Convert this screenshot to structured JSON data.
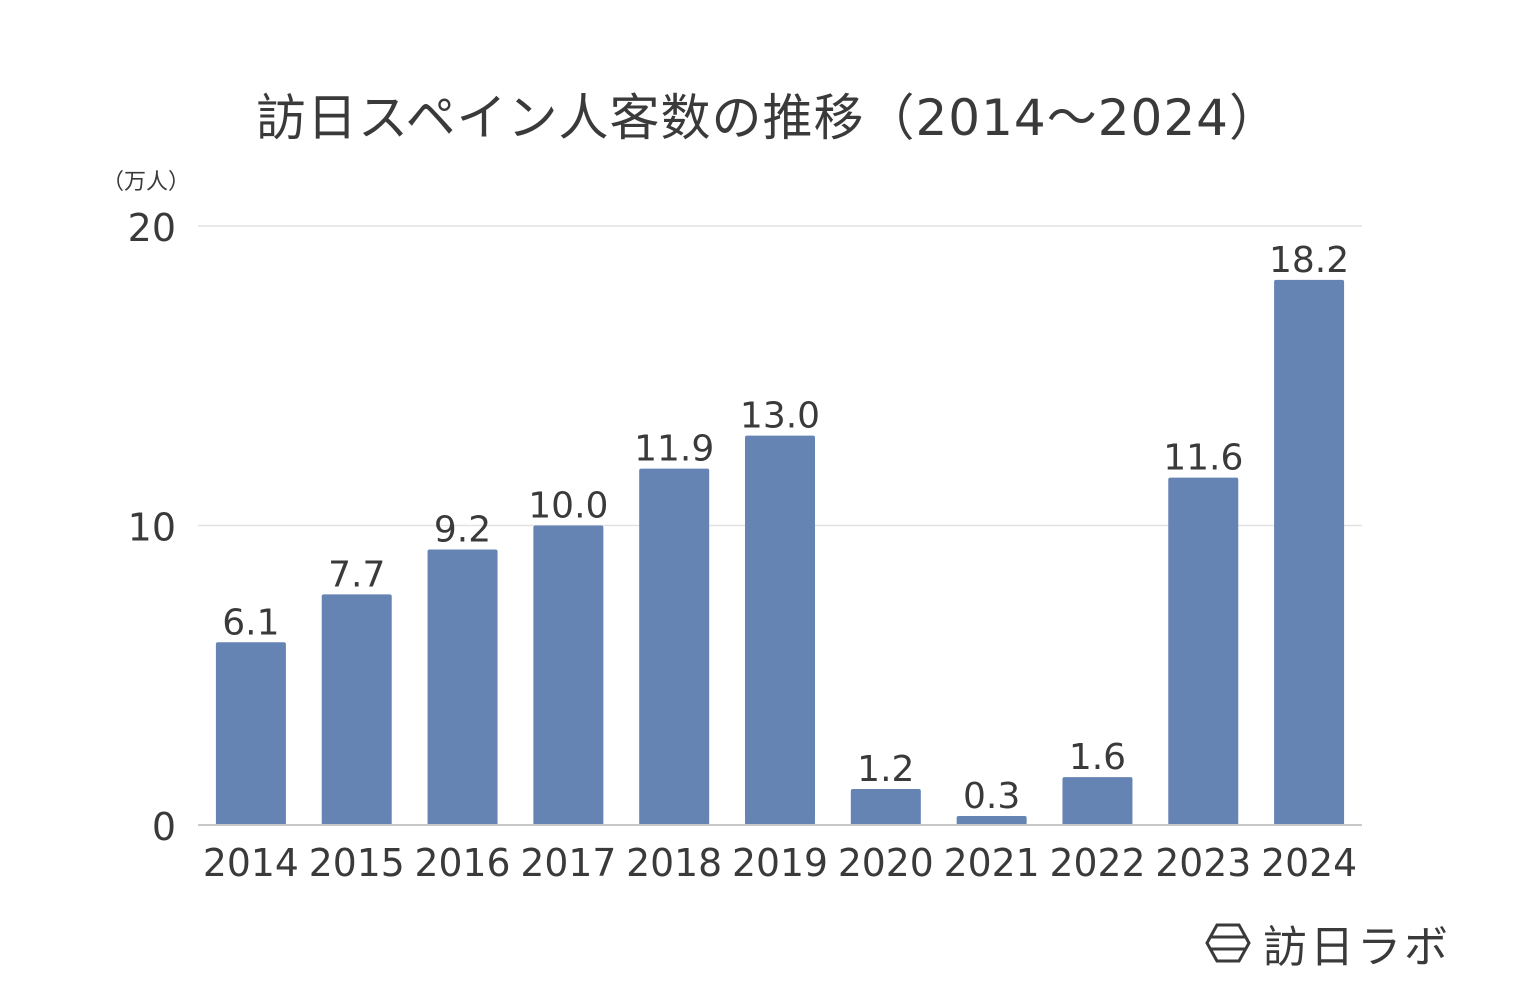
{
  "chart_data": {
    "type": "bar",
    "title": "訪日スペイン人客数の推移（2014〜2024）",
    "unit_label": "（万人）",
    "categories": [
      "2014",
      "2015",
      "2016",
      "2017",
      "2018",
      "2019",
      "2020",
      "2021",
      "2022",
      "2023",
      "2024"
    ],
    "values": [
      6.1,
      7.7,
      9.2,
      10.0,
      11.9,
      13.0,
      1.2,
      0.3,
      1.6,
      11.6,
      18.2
    ],
    "value_labels": [
      "6.1",
      "7.7",
      "9.2",
      "10.0",
      "11.9",
      "13.0",
      "1.2",
      "0.3",
      "1.6",
      "11.6",
      "18.2"
    ],
    "ylim": [
      0,
      20
    ],
    "yticks": [
      "0",
      "10",
      "20"
    ],
    "grid": true,
    "bar_color": "#6584b3",
    "grid_color": "#e2e2e2",
    "axis_color": "#c8c8c8"
  },
  "brand": {
    "name": "訪日ラボ",
    "icon": "hexagon-logo-icon"
  }
}
